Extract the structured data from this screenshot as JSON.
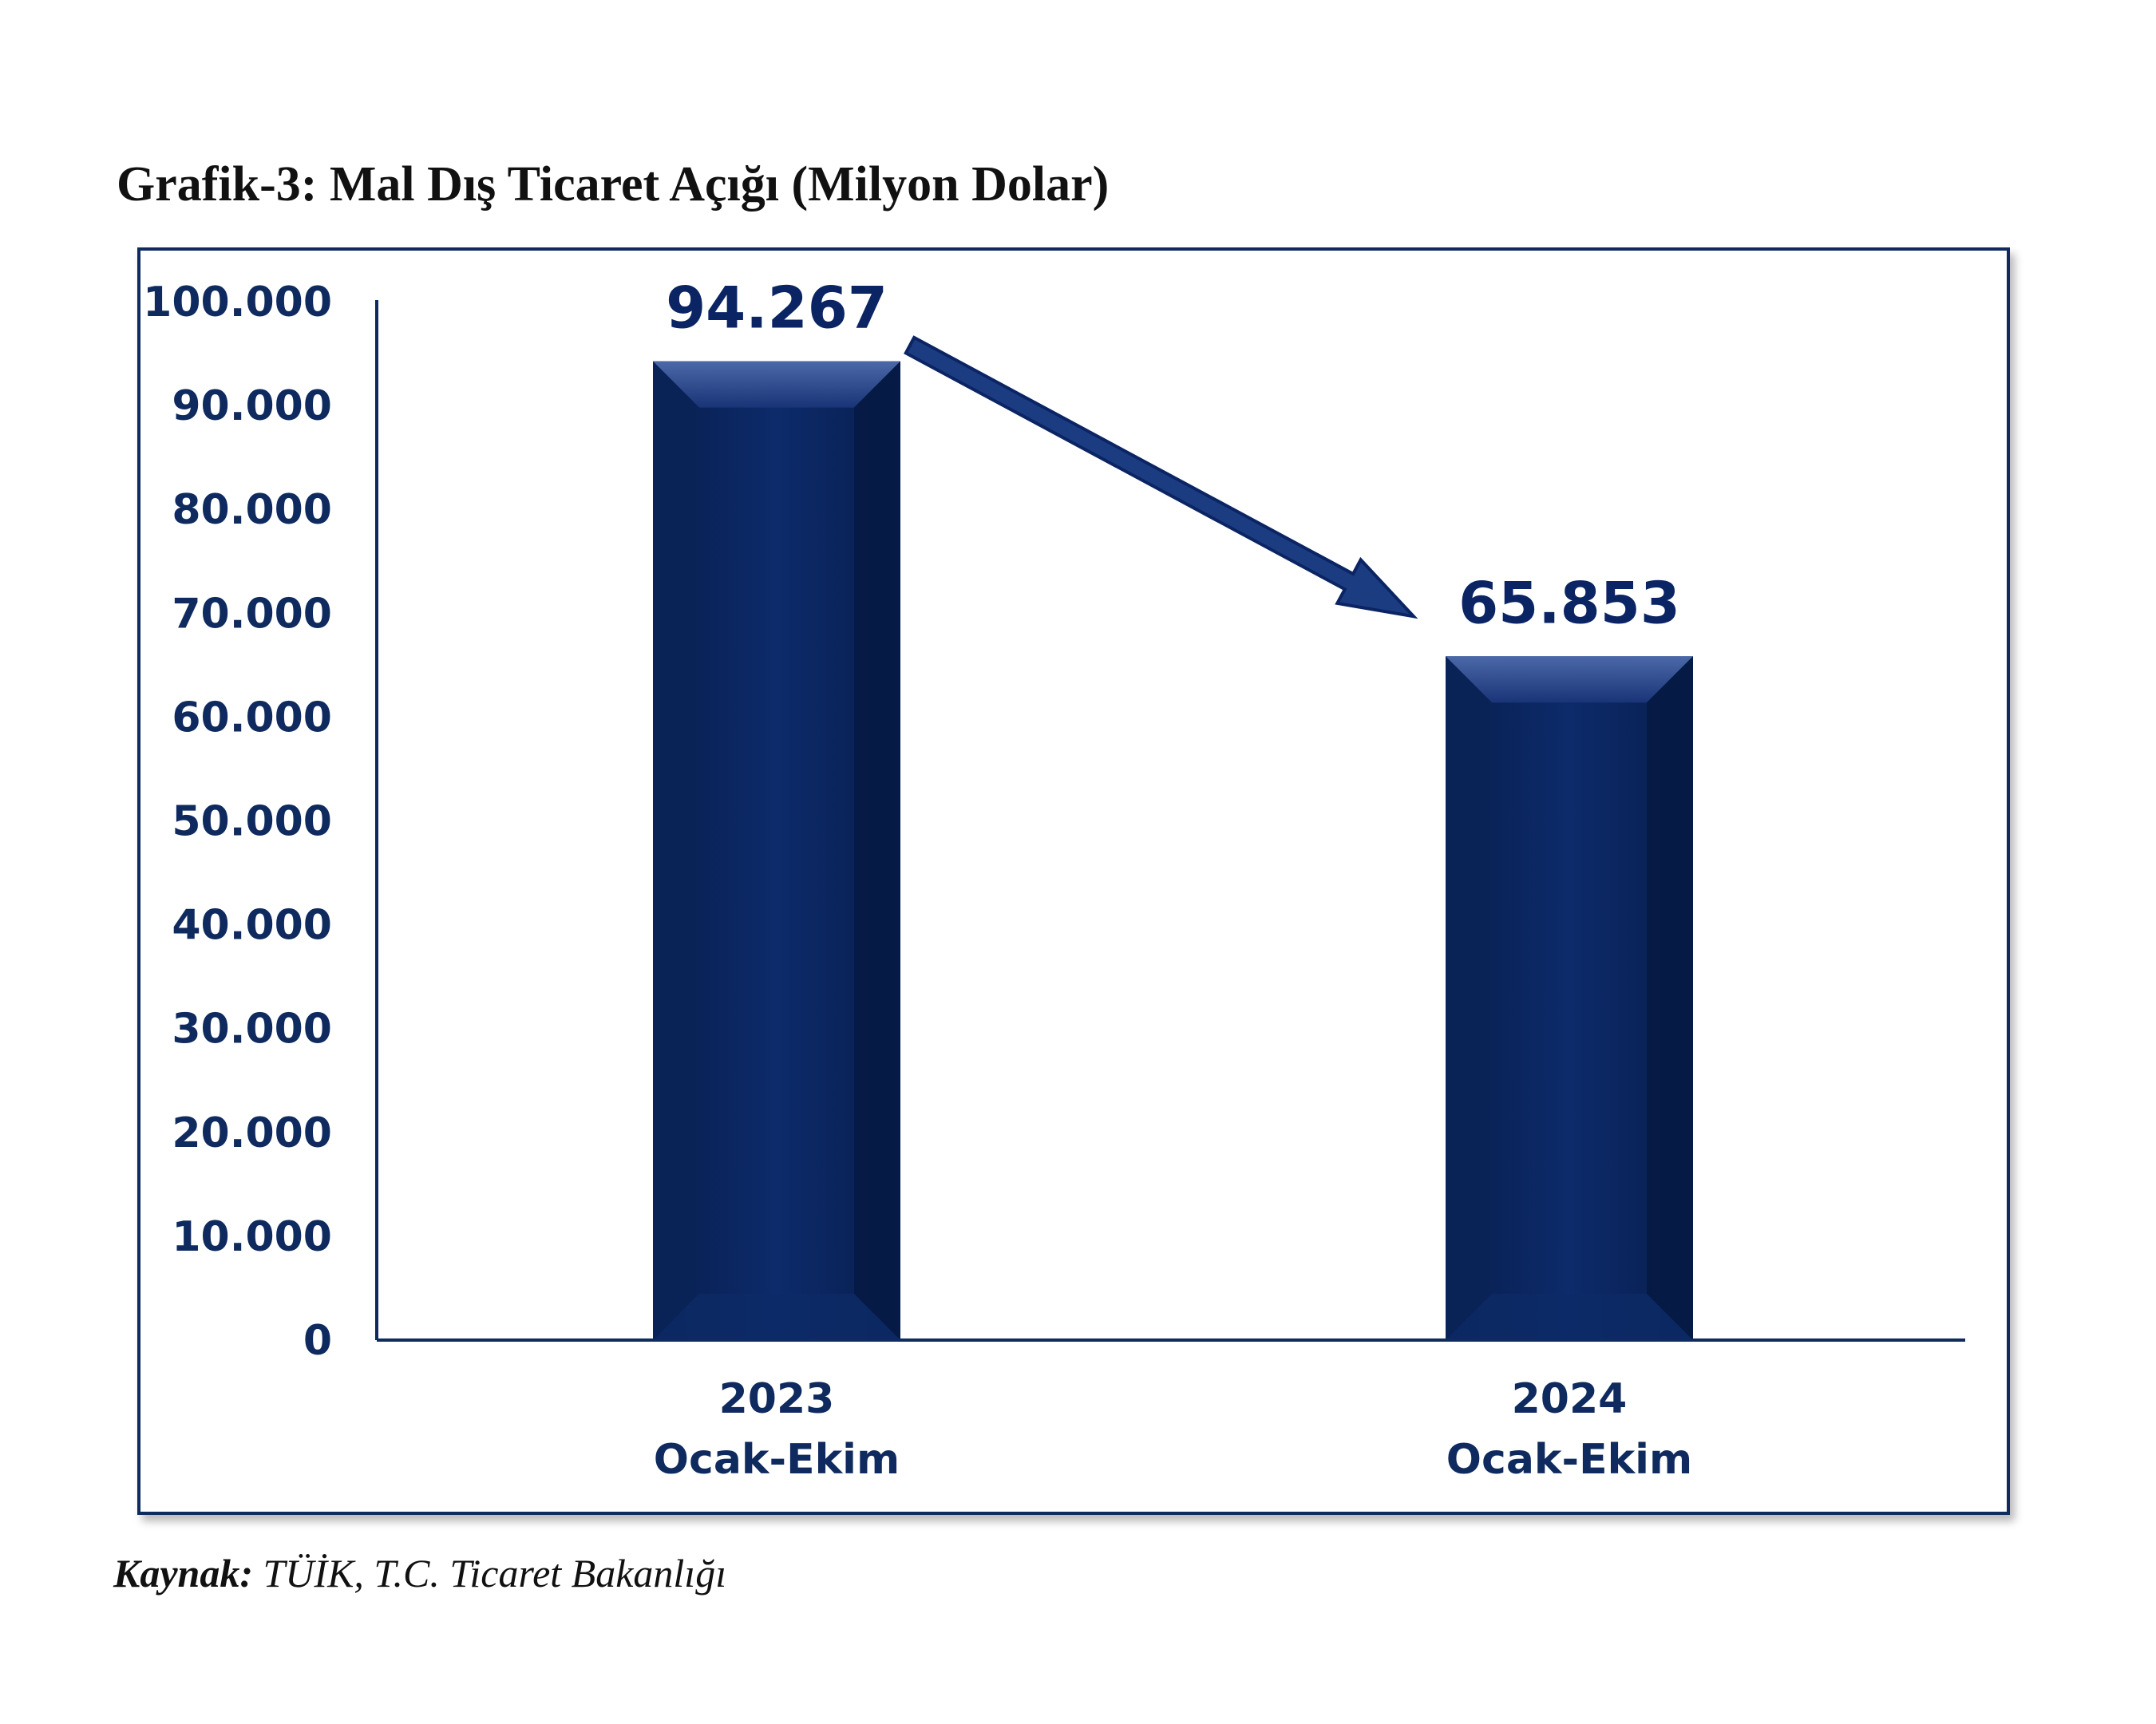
{
  "title": "Grafik-3: Mal Dış Ticaret Açığı (Milyon Dolar)",
  "source": {
    "label": "Kaynak:",
    "text": " TÜİK, T.C. Ticaret Bakanlığı"
  },
  "colors": {
    "bar": "#0b2463",
    "bar_highlight": "#3a5799",
    "axis": "#0f2a5e",
    "text": "#0f2a5e",
    "arrow": "#1c3c82"
  },
  "chart_data": {
    "type": "bar",
    "title": "Grafik-3: Mal Dış Ticaret Açığı (Milyon Dolar)",
    "xlabel": "",
    "ylabel": "",
    "categories": [
      [
        "2023",
        "Ocak-Ekim"
      ],
      [
        "2024",
        "Ocak-Ekim"
      ]
    ],
    "values": [
      94267,
      65853
    ],
    "value_labels": [
      "94.267",
      "65.853"
    ],
    "ylim": [
      0,
      100000
    ],
    "y_ticks": [
      0,
      10000,
      20000,
      30000,
      40000,
      50000,
      60000,
      70000,
      80000,
      90000,
      100000
    ],
    "y_tick_labels": [
      "0",
      "10.000",
      "20.000",
      "30.000",
      "40.000",
      "50.000",
      "60.000",
      "70.000",
      "80.000",
      "90.000",
      "100.000"
    ],
    "grid": false,
    "legend": "none",
    "annotations": [
      {
        "type": "arrow",
        "from_category": 0,
        "to_category": 1,
        "meaning": "decrease"
      }
    ]
  }
}
